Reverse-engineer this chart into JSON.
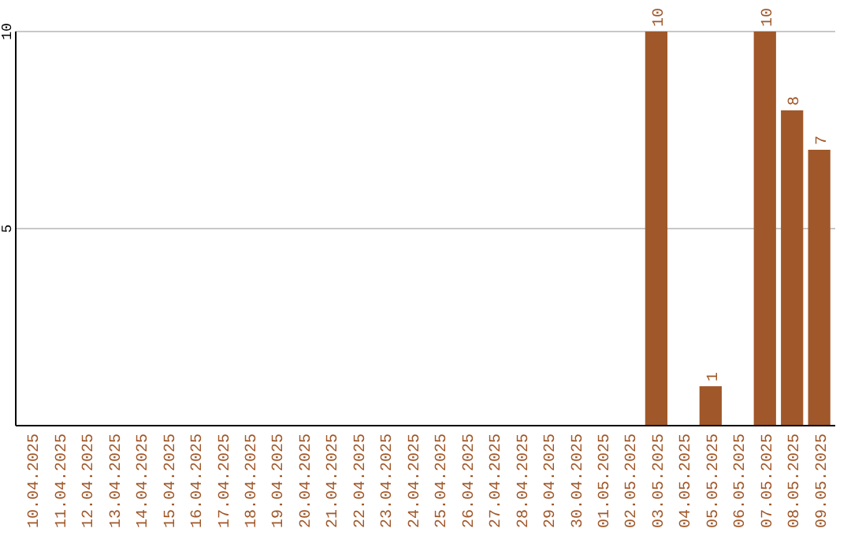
{
  "chart_data": {
    "type": "bar",
    "categories": [
      "10.04.2025",
      "11.04.2025",
      "12.04.2025",
      "13.04.2025",
      "14.04.2025",
      "15.04.2025",
      "16.04.2025",
      "17.04.2025",
      "18.04.2025",
      "19.04.2025",
      "20.04.2025",
      "21.04.2025",
      "22.04.2025",
      "23.04.2025",
      "24.04.2025",
      "25.04.2025",
      "26.04.2025",
      "27.04.2025",
      "28.04.2025",
      "29.04.2025",
      "30.04.2025",
      "01.05.2025",
      "02.05.2025",
      "03.05.2025",
      "04.05.2025",
      "05.05.2025",
      "06.05.2025",
      "07.05.2025",
      "08.05.2025",
      "09.05.2025"
    ],
    "values": [
      0,
      0,
      0,
      0,
      0,
      0,
      0,
      0,
      0,
      0,
      0,
      0,
      0,
      0,
      0,
      0,
      0,
      0,
      0,
      0,
      0,
      0,
      0,
      10,
      0,
      1,
      0,
      10,
      8,
      7
    ],
    "value_labels": [
      null,
      null,
      null,
      null,
      null,
      null,
      null,
      null,
      null,
      null,
      null,
      null,
      null,
      null,
      null,
      null,
      null,
      null,
      null,
      null,
      null,
      null,
      null,
      "10",
      null,
      "1",
      null,
      "10",
      "8",
      "7"
    ],
    "color": "#a0582a",
    "ylim": [
      0,
      10
    ],
    "yticks": [
      5,
      10
    ],
    "grid": "y"
  }
}
